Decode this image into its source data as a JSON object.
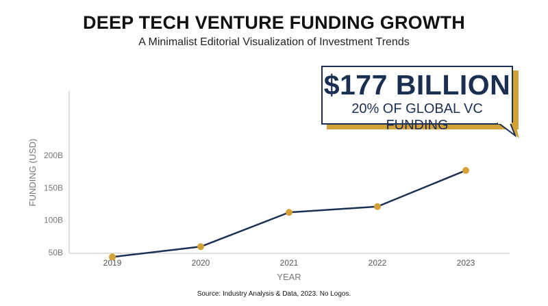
{
  "header": {
    "title": "DEEP TECH VENTURE FUNDING GROWTH",
    "subtitle": "A Minimalist Editorial Visualization of Investment Trends"
  },
  "callout": {
    "headline": "$177 BILLION",
    "subline": "20% OF GLOBAL VC FUNDING"
  },
  "footer": {
    "source": "Source: Industry Analysis & Data, 2023. No Logos."
  },
  "colors": {
    "line": "#1a2f52",
    "marker": "#d3a137",
    "axis": "#bfbfbf",
    "tick_text": "#777777"
  },
  "chart_data": {
    "type": "line",
    "categories": [
      "2019",
      "2020",
      "2021",
      "2022",
      "2023"
    ],
    "values": [
      43,
      59,
      112,
      121,
      177
    ],
    "xlabel": "YEAR",
    "ylabel": "FUNDING (USD)",
    "yticks": [
      50,
      100,
      150,
      200
    ],
    "ytick_labels": [
      "50B",
      "100B",
      "150B",
      "200B"
    ],
    "ylim": [
      0,
      250
    ],
    "grid": false
  }
}
